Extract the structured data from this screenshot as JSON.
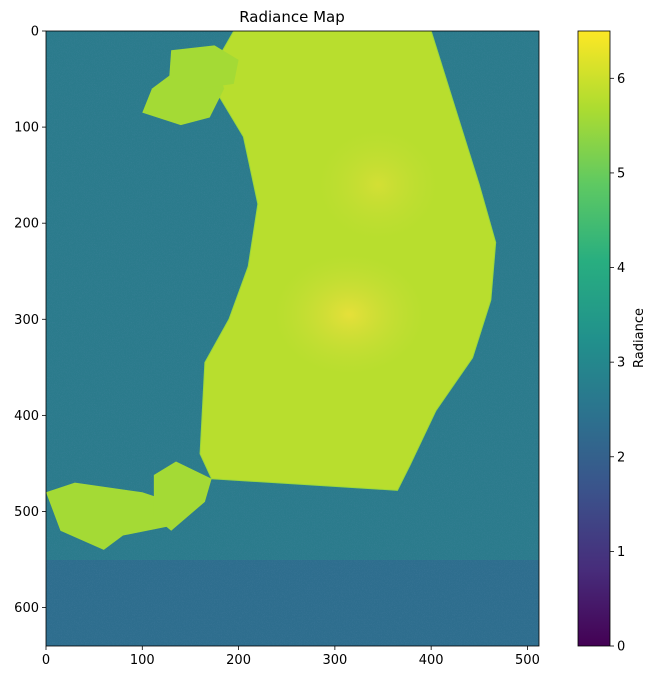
{
  "chart_data": {
    "type": "heatmap",
    "title": "Radiance Map",
    "image_width": 512,
    "image_height": 640,
    "x_ticks": [
      0,
      100,
      200,
      300,
      400,
      500
    ],
    "y_ticks": [
      0,
      100,
      200,
      300,
      400,
      500,
      600
    ],
    "xlim": [
      0,
      512
    ],
    "ylim": [
      640,
      0
    ],
    "colormap": "viridis",
    "colorbar": {
      "label": "Radiance",
      "range": [
        0,
        6.5
      ],
      "ticks": [
        0,
        1,
        2,
        3,
        4,
        5,
        6
      ]
    },
    "background_level": 2.7,
    "subject_level": 5.8,
    "peak_level": 6.3,
    "subject_outline": [
      [
        195,
        0
      ],
      [
        400,
        0
      ],
      [
        425,
        80
      ],
      [
        450,
        160
      ],
      [
        467,
        220
      ],
      [
        462,
        280
      ],
      [
        443,
        340
      ],
      [
        405,
        395
      ],
      [
        378,
        452
      ],
      [
        365,
        478
      ],
      [
        172,
        466
      ],
      [
        160,
        440
      ],
      [
        165,
        345
      ],
      [
        190,
        300
      ],
      [
        210,
        245
      ],
      [
        220,
        180
      ],
      [
        205,
        110
      ],
      [
        178,
        65
      ],
      [
        175,
        35
      ]
    ],
    "bright_region_center": [
      315,
      295
    ]
  }
}
